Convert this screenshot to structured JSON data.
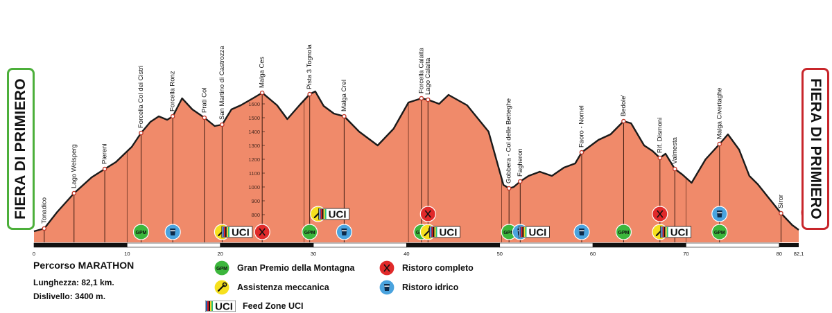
{
  "chart_data": {
    "type": "area",
    "title": "Percorso MARATHON",
    "x_unit": "km",
    "y_unit": "m",
    "xlim": [
      0,
      82.1
    ],
    "ylim": [
      600,
      1900
    ],
    "x_ticks": [
      "0",
      "10",
      "20",
      "30",
      "40",
      "50",
      "60",
      "70",
      "80",
      "82,1"
    ],
    "x_tick_values": [
      0,
      10,
      20,
      30,
      40,
      50,
      60,
      70,
      80,
      82.1
    ],
    "y_ticks": [
      "800",
      "900",
      "1000",
      "1100",
      "1200",
      "1300",
      "1400",
      "1500",
      "1600"
    ],
    "y_tick_values": [
      800,
      900,
      1000,
      1100,
      1200,
      1300,
      1400,
      1500,
      1600
    ],
    "series": [
      {
        "x": [
          0,
          1.1,
          2.5,
          4.3,
          6.2,
          7.6,
          8.8,
          10.5,
          11.5,
          12.5,
          13.4,
          14.3,
          14.9,
          15.9,
          17,
          18.3,
          19.4,
          20.2,
          21.2,
          22.2,
          23.5,
          24.5,
          26.1,
          27.2,
          28.5,
          29.6,
          30.2,
          31.1,
          32.2,
          33.3,
          34.9,
          36.9,
          38.6,
          40.2,
          41.6,
          42.3,
          43.5,
          44.5,
          46.5,
          48.8,
          50.4,
          51,
          51.5,
          52.2,
          53.1,
          54.3,
          55.6,
          56.9,
          58.1,
          58.8,
          60.6,
          61.9,
          63.3,
          64.1,
          65.5,
          66.4,
          67.2,
          67.8,
          68.8,
          69.6,
          70.6,
          72.1,
          73.6,
          74.5,
          75.7,
          76.8,
          77.7,
          80.2,
          81.4,
          82.1
        ],
        "y": [
          680,
          700,
          820,
          955,
          1070,
          1130,
          1180,
          1290,
          1390,
          1470,
          1510,
          1485,
          1510,
          1640,
          1560,
          1500,
          1440,
          1450,
          1560,
          1590,
          1640,
          1680,
          1590,
          1490,
          1590,
          1670,
          1690,
          1585,
          1530,
          1510,
          1400,
          1300,
          1420,
          1610,
          1640,
          1630,
          1600,
          1665,
          1590,
          1400,
          1015,
          990,
          1000,
          1040,
          1080,
          1110,
          1080,
          1140,
          1170,
          1250,
          1340,
          1380,
          1475,
          1460,
          1300,
          1260,
          1210,
          1240,
          1130,
          1090,
          1030,
          1200,
          1310,
          1380,
          1270,
          1080,
          1020,
          810,
          725,
          690
        ],
        "color": "#f08a6a"
      }
    ],
    "waypoints": [
      {
        "name": "Tonadico",
        "km": 1.1
      },
      {
        "name": "Lago Welsperg",
        "km": 4.3
      },
      {
        "name": "Piereni",
        "km": 7.6
      },
      {
        "name": "Forcella Col dei Cistri",
        "km": 11.5
      },
      {
        "name": "Forcella Ronz",
        "km": 14.9
      },
      {
        "name": "Prati Col",
        "km": 18.3
      },
      {
        "name": "San Martino di Castrozza",
        "km": 20.2
      },
      {
        "name": "Malga Ces",
        "km": 24.5
      },
      {
        "name": "Pista 3 Tognola",
        "km": 29.6
      },
      {
        "name": "Malga Crel",
        "km": 33.3
      },
      {
        "name": "Forcella Calaita",
        "km": 41.6
      },
      {
        "name": "Lago Calaita",
        "km": 42.3
      },
      {
        "name": "Gobbera - Col delle Betteghe",
        "km": 51.0
      },
      {
        "name": "Fagheron",
        "km": 52.2
      },
      {
        "name": "Faoro - Nomel",
        "km": 58.8
      },
      {
        "name": "Bedole'",
        "km": 63.3
      },
      {
        "name": "Rif. Dismoni",
        "km": 67.2
      },
      {
        "name": "Valmesta",
        "km": 68.8
      },
      {
        "name": "Malga Civertaghe",
        "km": 73.6
      },
      {
        "name": "Siror",
        "km": 80.2
      }
    ],
    "markers": [
      {
        "type": "gpm",
        "km": 11.5,
        "row": "bottom"
      },
      {
        "type": "water",
        "km": 14.9,
        "row": "bottom"
      },
      {
        "type": "mech",
        "km": 20.2,
        "row": "bottom"
      },
      {
        "type": "uci",
        "km": 21.8,
        "row": "bottom"
      },
      {
        "type": "food",
        "km": 24.5,
        "row": "bottom"
      },
      {
        "type": "gpm",
        "km": 29.6,
        "row": "bottom"
      },
      {
        "type": "mech",
        "km": 30.5,
        "row": "top"
      },
      {
        "type": "uci",
        "km": 32.2,
        "row": "top"
      },
      {
        "type": "water",
        "km": 33.3,
        "row": "bottom"
      },
      {
        "type": "gpm",
        "km": 41.6,
        "row": "bottom"
      },
      {
        "type": "food",
        "km": 42.3,
        "row": "top"
      },
      {
        "type": "mech",
        "km": 42.3,
        "row": "bottom"
      },
      {
        "type": "uci",
        "km": 44.1,
        "row": "bottom"
      },
      {
        "type": "gpm",
        "km": 51.0,
        "row": "bottom"
      },
      {
        "type": "water",
        "km": 52.2,
        "row": "bottom"
      },
      {
        "type": "uci",
        "km": 53.7,
        "row": "bottom"
      },
      {
        "type": "water",
        "km": 58.8,
        "row": "bottom"
      },
      {
        "type": "gpm",
        "km": 63.3,
        "row": "bottom"
      },
      {
        "type": "food",
        "km": 67.2,
        "row": "top"
      },
      {
        "type": "mech",
        "km": 67.2,
        "row": "bottom"
      },
      {
        "type": "uci",
        "km": 68.9,
        "row": "bottom"
      },
      {
        "type": "water",
        "km": 73.6,
        "row": "top"
      },
      {
        "type": "gpm",
        "km": 73.6,
        "row": "bottom"
      }
    ],
    "extra_vlines_km": [
      10,
      29.0,
      40.2,
      50.2,
      70
    ]
  },
  "start_label": "FIERA DI PRIMIERO",
  "finish_label": "FIERA DI PRIMIERO",
  "info": {
    "title": "Percorso MARATHON",
    "length": "Lunghezza: 82,1 km.",
    "gain": "Dislivello: 3400 m."
  },
  "legend": [
    {
      "type": "gpm",
      "label": "Gran Premio della Montagna"
    },
    {
      "type": "mech",
      "label": "Assistenza meccanica"
    },
    {
      "type": "uci",
      "label": "Feed Zone UCI"
    },
    {
      "type": "food",
      "label": "Ristoro completo"
    },
    {
      "type": "water",
      "label": "Ristoro idrico"
    }
  ],
  "icon_text": {
    "gpm": "GPM",
    "uci": "UCI"
  },
  "colors": {
    "profile_fill": "#f08a6a",
    "profile_line": "#1a1a1a",
    "gpm": "#3cb63c",
    "water": "#4aa3de",
    "food": "#e02a2a",
    "mech": "#f6e01e",
    "start": "#4caf3a",
    "finish": "#c8262b"
  }
}
